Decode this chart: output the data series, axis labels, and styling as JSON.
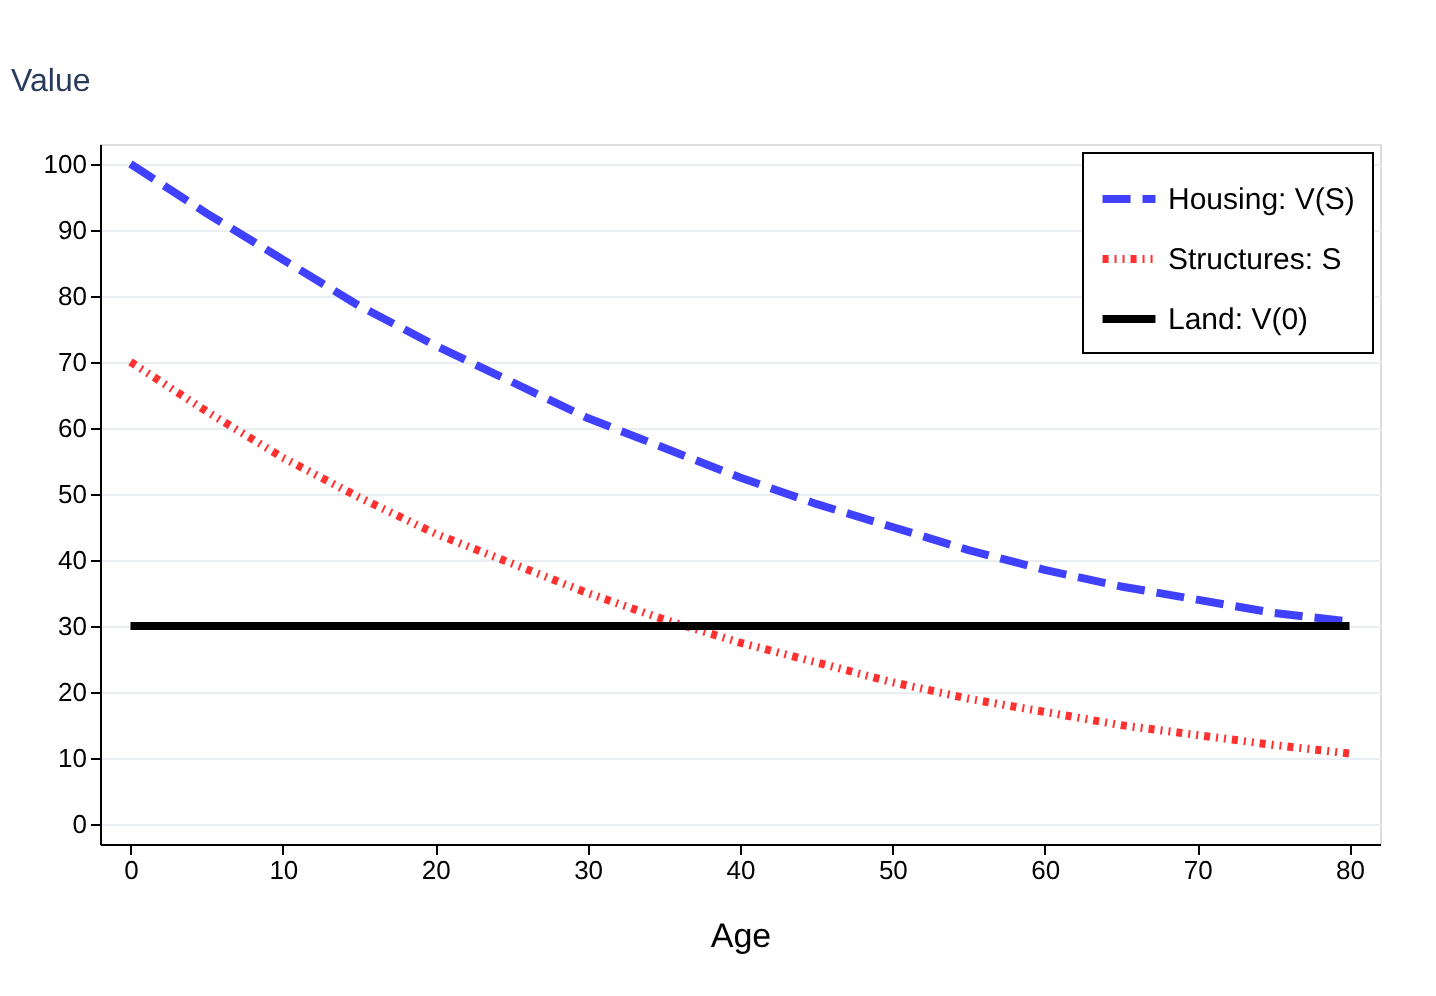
{
  "chart_data": {
    "type": "line",
    "xlabel": "Age",
    "ylabel": "Value",
    "x": [
      0,
      5,
      10,
      15,
      20,
      25,
      30,
      35,
      40,
      45,
      50,
      55,
      60,
      65,
      70,
      75,
      80
    ],
    "series": [
      {
        "name": "Housing: V(S)",
        "color": "#4040ff",
        "line_style": "dashed",
        "values": [
          100,
          92.5,
          85.5,
          78.5,
          72.5,
          67,
          61.5,
          57,
          52.5,
          48.5,
          45,
          41.5,
          38.5,
          36,
          34,
          32,
          30.7
        ]
      },
      {
        "name": "Structures: S",
        "color": "#ff3030",
        "line_style": "dotted",
        "values": [
          70,
          62.5,
          55.5,
          49.5,
          44,
          39.5,
          35,
          31,
          27.5,
          24.5,
          21.5,
          19,
          17,
          15,
          13.5,
          12,
          10.7
        ]
      },
      {
        "name": "Land: V(0)",
        "color": "#000000",
        "line_style": "solid",
        "values": [
          30,
          30,
          30,
          30,
          30,
          30,
          30,
          30,
          30,
          30,
          30,
          30,
          30,
          30,
          30,
          30,
          30
        ]
      }
    ],
    "xlim": [
      -2,
      82
    ],
    "xticks": [
      0,
      10,
      20,
      30,
      40,
      50,
      60,
      70,
      80
    ],
    "ylim": [
      -3,
      103
    ],
    "yticks": [
      0,
      10,
      20,
      30,
      40,
      50,
      60,
      70,
      80,
      90,
      100
    ],
    "grid": "y",
    "legend": "top right"
  }
}
